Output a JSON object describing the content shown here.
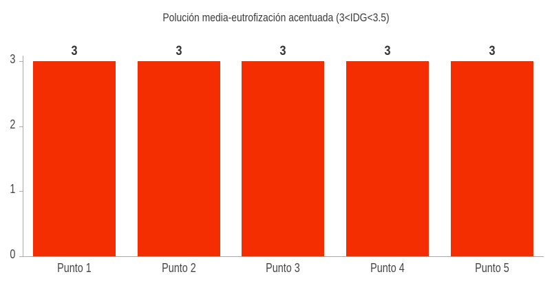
{
  "chart_data": {
    "type": "bar",
    "title": "Polución media-eutrofización acentuada (3<IDG<3.5)",
    "categories": [
      "Punto 1",
      "Punto 2",
      "Punto 3",
      "Punto 4",
      "Punto 5"
    ],
    "values": [
      3,
      3,
      3,
      3,
      3
    ],
    "data_labels": [
      "3",
      "3",
      "3",
      "3",
      "3"
    ],
    "xlabel": "",
    "ylabel": "",
    "ylim": [
      0,
      3
    ],
    "yticks": [
      "0",
      "1",
      "2",
      "3"
    ],
    "grid": false,
    "legend": null,
    "bar_color": "#f42e00"
  }
}
